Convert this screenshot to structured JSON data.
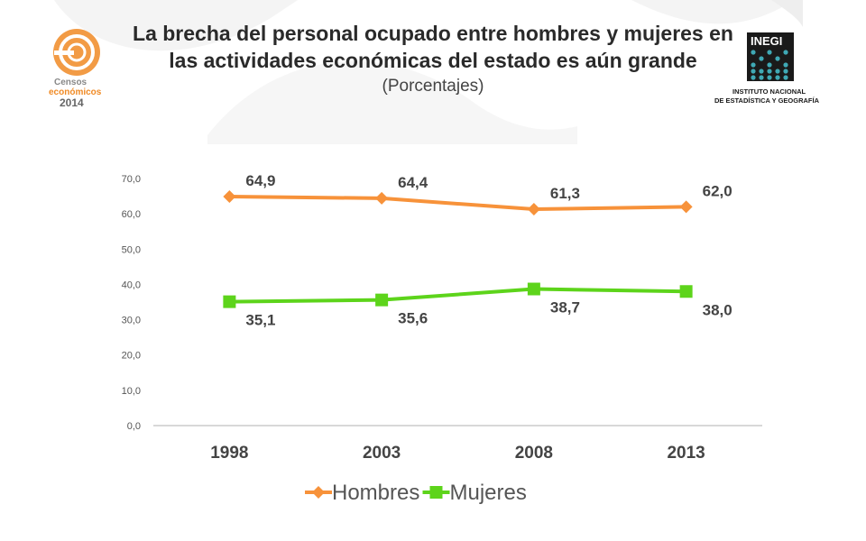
{
  "header": {
    "title": "La brecha del personal ocupado entre hombres y mujeres en las actividades económicas del estado es aún grande",
    "subtitle": "(Porcentajes)"
  },
  "logos": {
    "left": {
      "name": "censos-economicos-logo",
      "lines": [
        "Censos",
        "económicos",
        "2014"
      ]
    },
    "right": {
      "name": "inegi-logo",
      "acronym": "INEGI",
      "lines": [
        "INSTITUTO NACIONAL",
        "DE ESTADÍSTICA Y GEOGRAFÍA"
      ]
    }
  },
  "colors": {
    "hombres": "#f7923a",
    "mujeres": "#5dd41b",
    "axis": "#b0b0b0",
    "swoosh": "#f3f3f3",
    "logo_orange": "#f08a24",
    "logo_gray": "#888888",
    "inegi_dark": "#1a1a1a",
    "inegi_teal": "#3fa9b5"
  },
  "chart_data": {
    "type": "line",
    "categories": [
      "1998",
      "2003",
      "2008",
      "2013"
    ],
    "ylim": [
      0,
      70
    ],
    "ytick_step": 10,
    "yticks": [
      "0,0",
      "10,0",
      "20,0",
      "30,0",
      "40,0",
      "50,0",
      "60,0",
      "70,0"
    ],
    "grid": false,
    "legend_position": "bottom",
    "series": [
      {
        "name": "Hombres",
        "marker": "diamond",
        "values": [
          64.9,
          64.4,
          61.3,
          62.0
        ],
        "labels": [
          "64,9",
          "64,4",
          "61,3",
          "62,0"
        ],
        "label_position": "above"
      },
      {
        "name": "Mujeres",
        "marker": "square",
        "values": [
          35.1,
          35.6,
          38.7,
          38.0
        ],
        "labels": [
          "35,1",
          "35,6",
          "38,7",
          "38,0"
        ],
        "label_position": "below"
      }
    ]
  }
}
